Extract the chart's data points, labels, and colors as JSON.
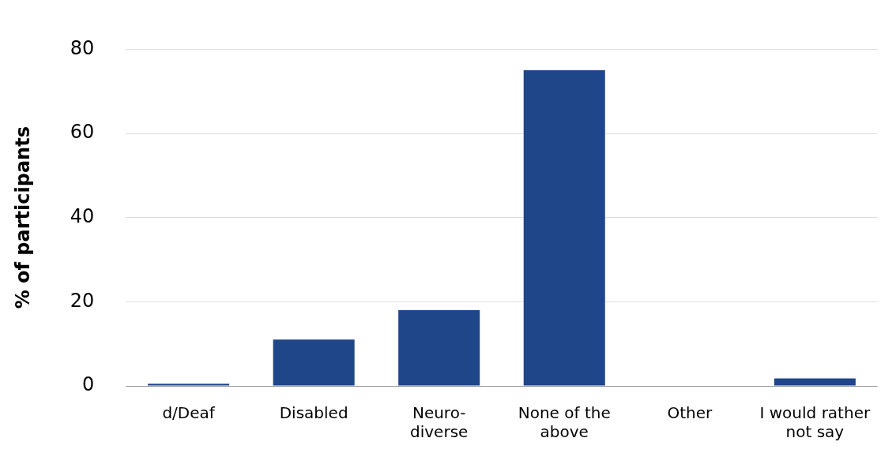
{
  "chart_data": {
    "type": "bar",
    "ylabel": "% of participants",
    "categories": [
      "d/Deaf",
      "Disabled",
      "Neuro-\ndiverse",
      "None of the\nabove",
      "Other",
      "I would rather\nnot say"
    ],
    "values": [
      0.5,
      11,
      18,
      75,
      0,
      1.8
    ],
    "color": "#1f4688",
    "ylim": [
      0,
      80
    ],
    "yticks": [
      0,
      20,
      40,
      60,
      80
    ],
    "grid": "y",
    "legend": false
  }
}
